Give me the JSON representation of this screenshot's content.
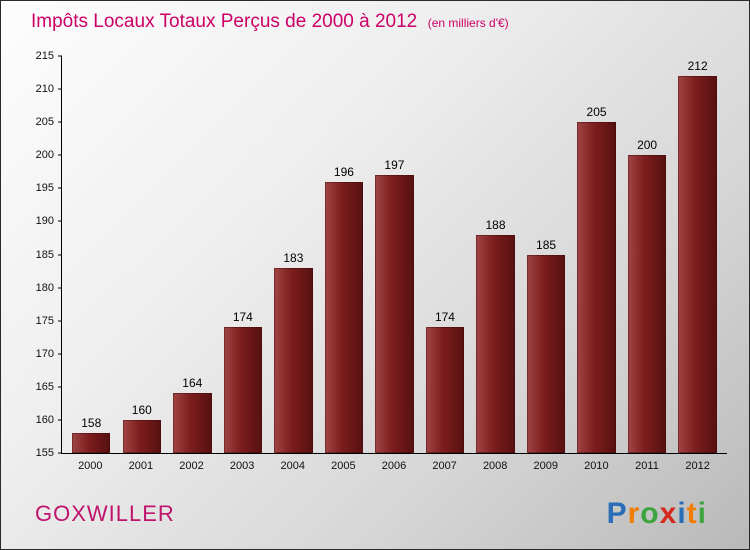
{
  "title": "Impôts Locaux Totaux Perçus de 2000 à 2012",
  "subtitle": "(en milliers d'€)",
  "chart_data": {
    "type": "bar",
    "title": "Impôts Locaux Totaux Perçus de 2000 à 2012",
    "subtitle": "(en milliers d'€)",
    "categories": [
      "2000",
      "2001",
      "2002",
      "2003",
      "2004",
      "2005",
      "2006",
      "2007",
      "2008",
      "2009",
      "2010",
      "2011",
      "2012"
    ],
    "values": [
      158,
      160,
      164,
      174,
      183,
      196,
      197,
      174,
      188,
      185,
      205,
      200,
      212
    ],
    "ylim": [
      155,
      215
    ],
    "ytick_step": 5,
    "ylabel": "",
    "xlabel": "",
    "grid": false,
    "legend": false,
    "bar_color_light": "#a04545",
    "bar_color_dark": "#561010"
  },
  "footer": {
    "place": "GOXWILLER",
    "place_color": "#c0146c",
    "logo_letters": [
      {
        "ch": "P",
        "color": "#2a6db8"
      },
      {
        "ch": "r",
        "color": "#f07d00"
      },
      {
        "ch": "o",
        "color": "#3da53d"
      },
      {
        "ch": "x",
        "color": "#d42a1e"
      },
      {
        "ch": "i",
        "color": "#2a6db8"
      },
      {
        "ch": "t",
        "color": "#f07d00"
      },
      {
        "ch": "i",
        "color": "#3da53d"
      }
    ]
  }
}
